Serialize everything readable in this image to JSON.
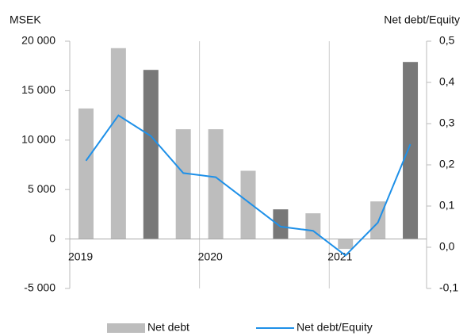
{
  "chart_data": {
    "type": "bar_line",
    "y_axis_title": "MSEK",
    "y2_axis_title": "Net debt/Equity",
    "categories": [
      "2019",
      null,
      null,
      null,
      "2020",
      null,
      null,
      null,
      "2021",
      null,
      null
    ],
    "series": [
      {
        "name": "Net debt",
        "type": "bar",
        "color": "#bdbdbd",
        "colors": [
          "#bdbdbd",
          "#bdbdbd",
          "#787878",
          "#bdbdbd",
          "#bdbdbd",
          "#bdbdbd",
          "#787878",
          "#bdbdbd",
          "#bdbdbd",
          "#bdbdbd",
          "#787878"
        ],
        "values": [
          13200,
          19300,
          17100,
          11100,
          11100,
          6900,
          3000,
          2600,
          -1000,
          3800,
          17900
        ]
      },
      {
        "name": "Net debt/Equity",
        "type": "line",
        "axis": "y2",
        "color": "#1e90e8",
        "values": [
          0.21,
          0.32,
          0.27,
          0.18,
          0.17,
          0.11,
          0.05,
          0.04,
          -0.02,
          0.06,
          0.25
        ]
      }
    ],
    "ylim": [
      -5000,
      20000
    ],
    "yticks": [
      {
        "value": -5000,
        "label": "-5 000"
      },
      0,
      {
        "value": 5000,
        "label": "5 000"
      },
      {
        "value": 10000,
        "label": "10 000"
      },
      {
        "value": 15000,
        "label": "15 000"
      },
      {
        "value": 20000,
        "label": "20 000"
      }
    ],
    "y2lim": [
      -0.1,
      0.5
    ],
    "y2ticks": [
      {
        "value": -0.1,
        "label": "-0,1"
      },
      {
        "value": 0,
        "label": "0,0"
      },
      {
        "value": 0.1,
        "label": "0,1"
      },
      {
        "value": 0.2,
        "label": "0,2"
      },
      {
        "value": 0.3,
        "label": "0,3"
      },
      {
        "value": 0.4,
        "label": "0,4"
      },
      {
        "value": 0.5,
        "label": "0,5"
      }
    ],
    "legend": "bottom"
  }
}
